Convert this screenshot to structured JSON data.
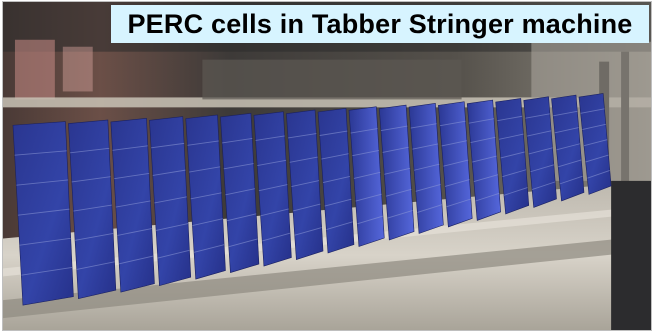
{
  "caption": {
    "text": "PERC cells in Tabber Stringer machine",
    "background": "#d7f4ff",
    "color": "#000000"
  },
  "scene": {
    "subject": "row of blue PERC solar cells on a tabber stringer machine",
    "cell_count": 18,
    "colors": {
      "cell_blue": "#2f3d9e",
      "cell_highlight": "#4d63d6",
      "background_machine": "#3a3a3c",
      "conveyor": "#cfcbc3"
    }
  }
}
